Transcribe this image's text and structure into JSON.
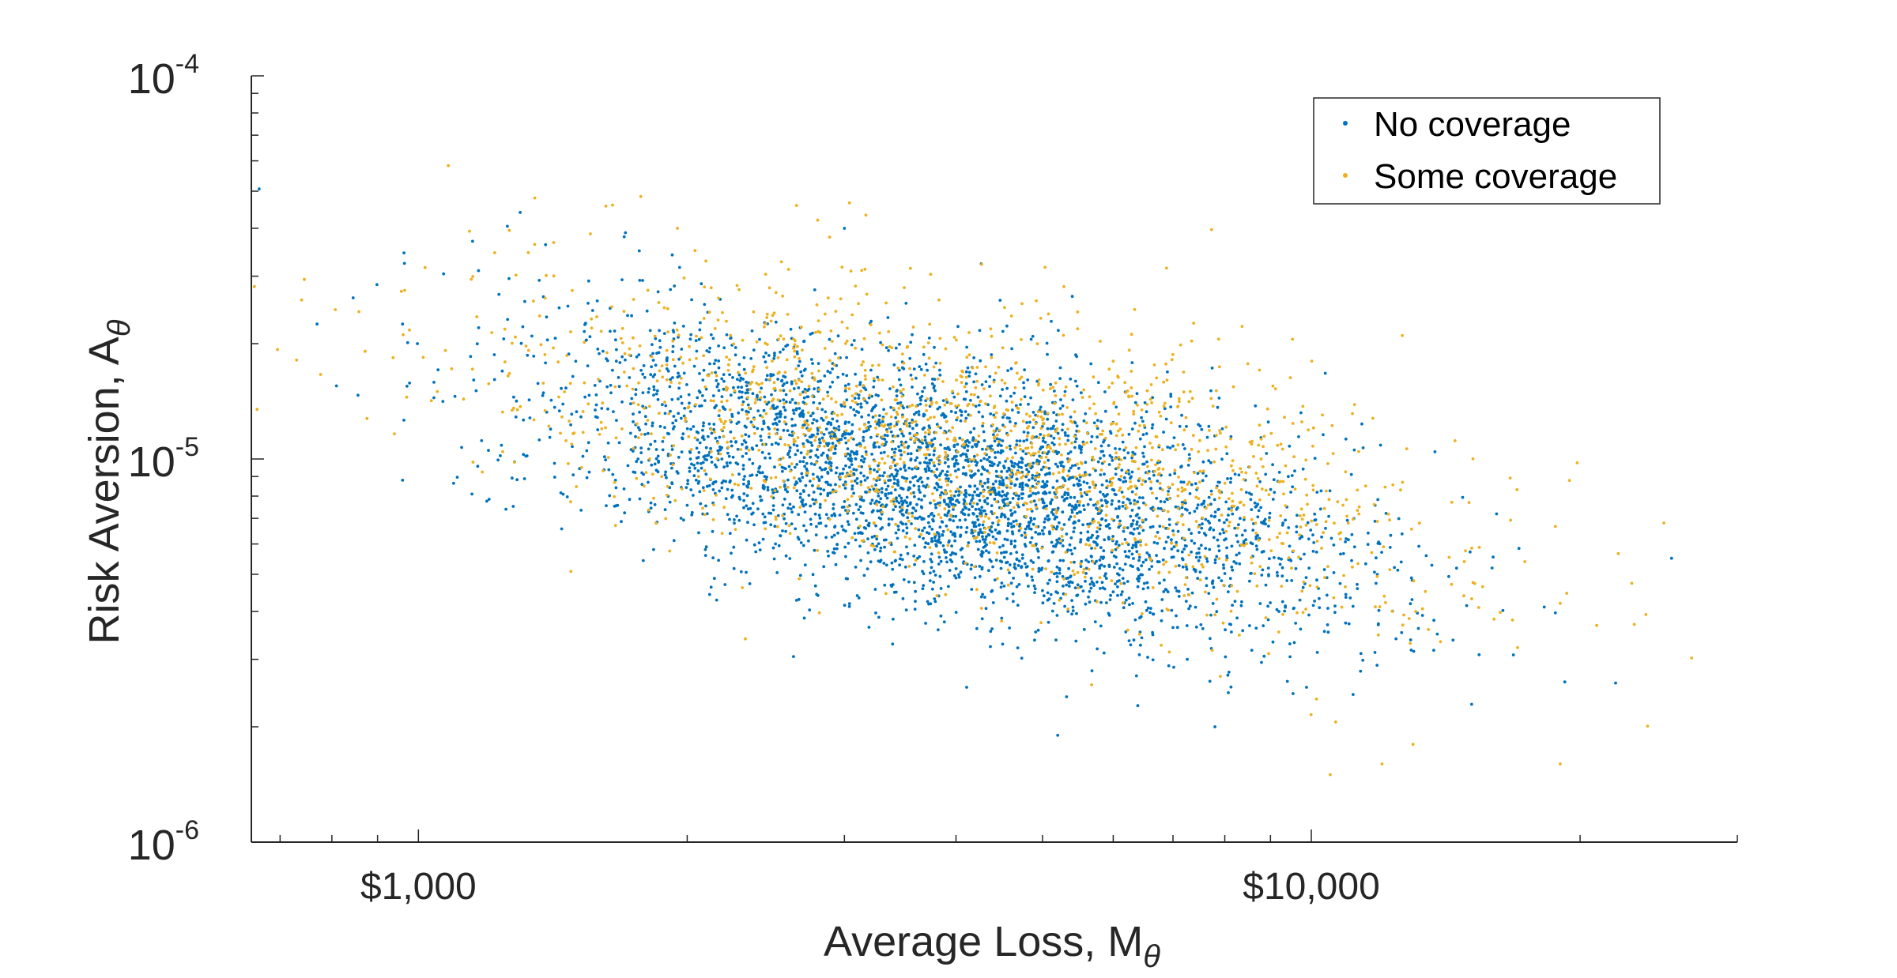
{
  "chart_data": {
    "type": "scatter",
    "title": "",
    "xlabel": "Average Loss,  M",
    "xlabel_subscript": "θ",
    "ylabel": "Risk Aversion, A",
    "ylabel_subscript": "θ",
    "x_scale": "log",
    "y_scale": "log",
    "xlim": [
      650,
      30000
    ],
    "ylim": [
      1e-06,
      0.0001
    ],
    "x_tick_labels": [
      {
        "value": 1000,
        "label": "$1,000"
      },
      {
        "value": 10000,
        "label": "$10,000"
      }
    ],
    "y_tick_labels": [
      {
        "value": 0.0001,
        "base": "10",
        "exp": "-4"
      },
      {
        "value": 1e-05,
        "base": "10",
        "exp": "-5"
      },
      {
        "value": 1e-06,
        "base": "10",
        "exp": "-6"
      }
    ],
    "grid": false,
    "legend_position": "top-right",
    "series": [
      {
        "name": "No coverage",
        "color": "#0072BD",
        "n_points": 3800,
        "distribution": {
          "log10_x_mean": 3.6,
          "log10_x_sd": 0.22,
          "log10_y_mean": -5.07,
          "log10_y_sd": 0.19,
          "correlation": -0.55
        },
        "sample_points": [
          [
            770,
            2.25e-05
          ],
          [
            960,
            2.25e-05
          ],
          [
            960,
            8.8e-06
          ],
          [
            1150,
            3.7e-05
          ],
          [
            1300,
            4.4e-05
          ],
          [
            1700,
            3.8e-05
          ],
          [
            2200,
            1.95e-05
          ],
          [
            3000,
            4e-05
          ],
          [
            3500,
            9.5e-06
          ],
          [
            4200,
            8.5e-06
          ],
          [
            5000,
            6.5e-06
          ],
          [
            6000,
            4.5e-06
          ],
          [
            5200,
            1.9e-06
          ],
          [
            7800,
            2e-06
          ],
          [
            9200,
            4e-06
          ]
        ]
      },
      {
        "name": "Some coverage",
        "color": "#EDB120",
        "n_points": 1600,
        "distribution": {
          "log10_x_mean": 3.62,
          "log10_x_sd": 0.27,
          "log10_y_mean": -4.98,
          "log10_y_sd": 0.21,
          "correlation": -0.55
        },
        "sample_points": [
          [
            740,
            2.6e-05
          ],
          [
            1050,
            1.5e-05
          ],
          [
            1350,
            4.8e-05
          ],
          [
            1650,
            4.6e-05
          ],
          [
            1950,
            4e-05
          ],
          [
            2800,
            4.2e-05
          ],
          [
            3500,
            2.8e-05
          ],
          [
            6000,
            1.8e-05
          ],
          [
            10500,
            1.5e-06
          ],
          [
            12000,
            1.6e-06
          ],
          [
            13000,
            1.8e-06
          ],
          [
            19000,
            1.6e-06
          ],
          [
            19000,
            4.2e-06
          ],
          [
            23000,
            3.7e-06
          ],
          [
            11000,
            6.8e-06
          ]
        ]
      }
    ]
  },
  "legend": {
    "items": [
      {
        "label": "No coverage",
        "color": "#0072BD"
      },
      {
        "label": "Some coverage",
        "color": "#EDB120"
      }
    ]
  }
}
